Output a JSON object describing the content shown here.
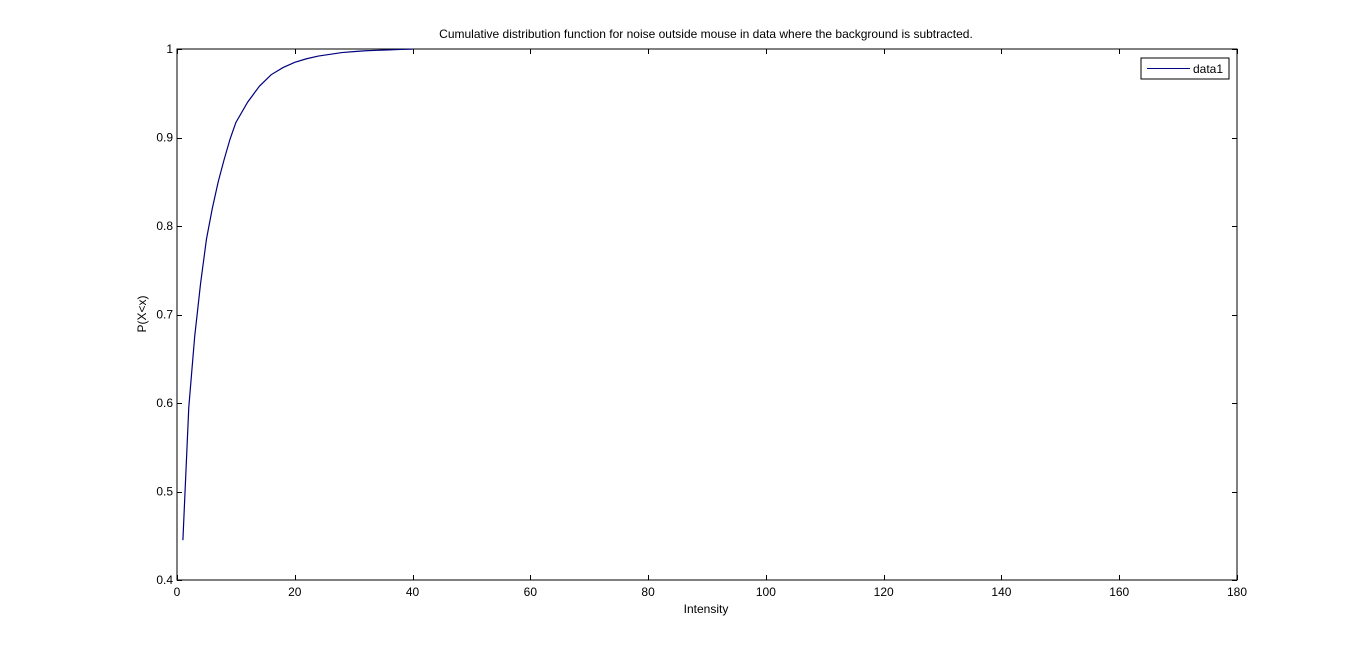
{
  "chart_data": {
    "type": "line",
    "title": "Cumulative distribution function for noise outside mouse in data where the background is subtracted.",
    "xlabel": "Intensity",
    "ylabel": "P(X<x)",
    "xlim": [
      0,
      180
    ],
    "ylim": [
      0.4,
      1
    ],
    "xticks": [
      0,
      20,
      40,
      60,
      80,
      100,
      120,
      140,
      160,
      180
    ],
    "yticks": [
      0.4,
      0.5,
      0.6,
      0.7,
      0.8,
      0.9,
      1
    ],
    "xtick_labels": [
      "0",
      "20",
      "40",
      "60",
      "80",
      "100",
      "120",
      "140",
      "160",
      "180"
    ],
    "ytick_labels": [
      "0.4",
      "0.5",
      "0.6",
      "0.7",
      "0.8",
      "0.9",
      "1"
    ],
    "grid": false,
    "legend_position": "top-right",
    "series": [
      {
        "name": "data1",
        "color": "#00007f",
        "x": [
          1,
          2,
          3,
          4,
          5,
          6,
          7,
          8,
          9,
          10,
          12,
          14,
          16,
          18,
          20,
          22,
          24,
          26,
          28,
          30,
          32,
          34,
          36,
          38,
          40
        ],
        "y": [
          0.445,
          0.595,
          0.675,
          0.735,
          0.785,
          0.82,
          0.85,
          0.875,
          0.898,
          0.917,
          0.94,
          0.958,
          0.971,
          0.979,
          0.985,
          0.989,
          0.992,
          0.994,
          0.996,
          0.997,
          0.998,
          0.9985,
          0.999,
          0.9995,
          0.9998
        ]
      }
    ]
  }
}
